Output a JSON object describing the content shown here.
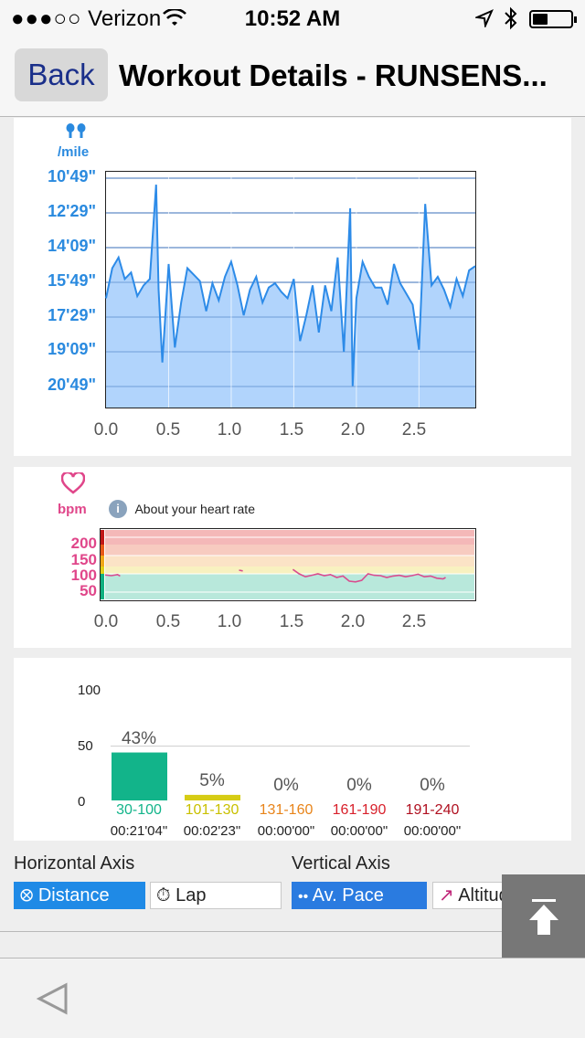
{
  "status_bar": {
    "signal": "●●●○○",
    "carrier": "Verizon",
    "time": "10:52 AM"
  },
  "nav": {
    "back_label": "Back",
    "title": "Workout Details - RUNSENS..."
  },
  "pace_chart": {
    "unit_label": "/mile",
    "y_ticks": [
      "10'49\"",
      "12'29\"",
      "14'09\"",
      "15'49\"",
      "17'29\"",
      "19'09\"",
      "20'49\""
    ],
    "x_ticks": [
      "0.0",
      "0.5",
      "1.0",
      "1.5",
      "2.0",
      "2.5"
    ],
    "fill_color": "#a9cffc",
    "line_color": "#2d8be8"
  },
  "heart_chart": {
    "unit_label": "bpm",
    "info_label": "About your heart rate",
    "y_ticks": [
      "200",
      "150",
      "100",
      "50"
    ],
    "x_ticks": [
      "0.0",
      "0.5",
      "1.0",
      "1.5",
      "2.0",
      "2.5"
    ],
    "line_color": "#d94c8e"
  },
  "zones": {
    "y_ticks": [
      "100",
      "50",
      "0"
    ],
    "items": [
      {
        "range": "30-100",
        "pct": "43%",
        "time": "00:21'04\"",
        "color": "#12b48a",
        "value": 43
      },
      {
        "range": "101-130",
        "pct": "5%",
        "time": "00:02'23\"",
        "color": "#d6cc14",
        "value": 5
      },
      {
        "range": "131-160",
        "pct": "0%",
        "time": "00:00'00\"",
        "color": "#e8841a",
        "value": 0
      },
      {
        "range": "161-190",
        "pct": "0%",
        "time": "00:00'00\"",
        "color": "#d8202b",
        "value": 0
      },
      {
        "range": "191-240",
        "pct": "0%",
        "time": "00:00'00\"",
        "color": "#b01020",
        "value": 0
      }
    ]
  },
  "axis_options": {
    "horizontal_label": "Horizontal Axis",
    "vertical_label": "Vertical Axis",
    "distance": "Distance",
    "lap": "Lap",
    "av_pace": "Av. Pace",
    "altitude": "Altitude"
  },
  "chart_data": [
    {
      "type": "area",
      "xlabel": "",
      "ylabel": "/mile",
      "xlim": [
        0.0,
        2.95
      ],
      "x": [
        0.0,
        0.05,
        0.1,
        0.15,
        0.2,
        0.25,
        0.3,
        0.35,
        0.4,
        0.42,
        0.45,
        0.5,
        0.55,
        0.6,
        0.65,
        0.7,
        0.75,
        0.8,
        0.85,
        0.9,
        0.95,
        1.0,
        1.05,
        1.1,
        1.15,
        1.2,
        1.25,
        1.3,
        1.35,
        1.4,
        1.45,
        1.5,
        1.55,
        1.6,
        1.65,
        1.7,
        1.75,
        1.8,
        1.85,
        1.9,
        1.95,
        1.97,
        2.0,
        2.05,
        2.1,
        2.15,
        2.2,
        2.25,
        2.3,
        2.35,
        2.4,
        2.45,
        2.5,
        2.55,
        2.6,
        2.65,
        2.7,
        2.75,
        2.8,
        2.85,
        2.9,
        2.95
      ],
      "series": [
        {
          "values": [
            16.4,
            15.0,
            14.5,
            15.5,
            15.2,
            16.3,
            15.8,
            15.5,
            11.1,
            16.0,
            19.4,
            14.8,
            18.7,
            16.6,
            15.0,
            15.3,
            15.6,
            17.0,
            15.7,
            16.5,
            15.4,
            14.7,
            15.8,
            17.2,
            16.0,
            15.4,
            16.6,
            15.9,
            15.7,
            16.1,
            16.4,
            15.5,
            18.4,
            17.2,
            15.8,
            18.0,
            15.8,
            17.0,
            14.5,
            18.9,
            12.2,
            20.5,
            16.4,
            14.7,
            15.4,
            15.9,
            15.9,
            16.7,
            14.8,
            15.7,
            16.2,
            16.7,
            18.8,
            12.0,
            15.8,
            15.4,
            16.0,
            16.8,
            15.5,
            16.3,
            15.1,
            14.9
          ]
        }
      ],
      "ylim": [
        10.5,
        21.5
      ]
    },
    {
      "type": "line",
      "xlabel": "",
      "ylabel": "bpm",
      "xlim": [
        0.0,
        2.95
      ],
      "ylim": [
        30,
        220
      ],
      "x": [
        0.0,
        0.05,
        0.1,
        0.12,
        1.07,
        1.1,
        1.5,
        1.55,
        1.6,
        1.65,
        1.7,
        1.75,
        1.8,
        1.85,
        1.9,
        1.95,
        2.0,
        2.05,
        2.1,
        2.15,
        2.2,
        2.25,
        2.3,
        2.35,
        2.4,
        2.45,
        2.5,
        2.55,
        2.6,
        2.65,
        2.7,
        2.72
      ],
      "series": [
        {
          "values": [
            97,
            95,
            98,
            94,
            110,
            108,
            112,
            100,
            92,
            96,
            100,
            95,
            98,
            90,
            94,
            80,
            78,
            82,
            100,
            96,
            95,
            90,
            94,
            96,
            92,
            95,
            99,
            92,
            94,
            88,
            86,
            90
          ]
        }
      ]
    },
    {
      "type": "bar",
      "categories": [
        "30-100",
        "101-130",
        "131-160",
        "161-190",
        "191-240"
      ],
      "values": [
        43,
        5,
        0,
        0,
        0
      ],
      "ylim": [
        0,
        100
      ]
    }
  ]
}
